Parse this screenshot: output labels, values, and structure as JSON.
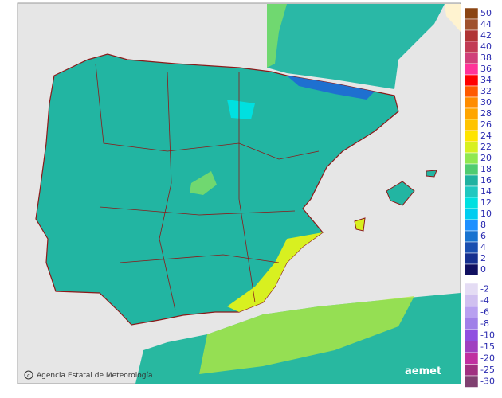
{
  "legend": {
    "items": [
      {
        "value": 50,
        "color": "#8b4513"
      },
      {
        "value": 44,
        "color": "#a0522d"
      },
      {
        "value": 42,
        "color": "#b03535"
      },
      {
        "value": 40,
        "color": "#c23c55"
      },
      {
        "value": 38,
        "color": "#d0407a"
      },
      {
        "value": 36,
        "color": "#ff3399"
      },
      {
        "value": 34,
        "color": "#ff0000"
      },
      {
        "value": 32,
        "color": "#ff5a00"
      },
      {
        "value": 30,
        "color": "#ff8c00"
      },
      {
        "value": 28,
        "color": "#ffa500"
      },
      {
        "value": 26,
        "color": "#ffc400"
      },
      {
        "value": 24,
        "color": "#ffe400"
      },
      {
        "value": 22,
        "color": "#d8f020"
      },
      {
        "value": 20,
        "color": "#90e850"
      },
      {
        "value": 18,
        "color": "#50cc70"
      },
      {
        "value": 16,
        "color": "#20b2a0"
      },
      {
        "value": 14,
        "color": "#20c8c0"
      },
      {
        "value": 12,
        "color": "#00e0e0"
      },
      {
        "value": 10,
        "color": "#00cdf0"
      },
      {
        "value": 8,
        "color": "#1e90ff"
      },
      {
        "value": 6,
        "color": "#1873d0"
      },
      {
        "value": 4,
        "color": "#1a4fb0"
      },
      {
        "value": 2,
        "color": "#16308f"
      },
      {
        "value": 0,
        "color": "#101060"
      },
      {
        "value": -2,
        "color": "#e4dcf4"
      },
      {
        "value": -4,
        "color": "#d0c0f0"
      },
      {
        "value": -6,
        "color": "#b8a0f0"
      },
      {
        "value": -8,
        "color": "#a080e8"
      },
      {
        "value": -10,
        "color": "#9050e0"
      },
      {
        "value": -15,
        "color": "#a040c0"
      },
      {
        "value": -20,
        "color": "#c030a0"
      },
      {
        "value": -25,
        "color": "#a03080"
      },
      {
        "value": -30,
        "color": "#804070"
      }
    ]
  },
  "credit": {
    "text": "Agencia Estatal de Meteorología",
    "logo": "aemet"
  }
}
